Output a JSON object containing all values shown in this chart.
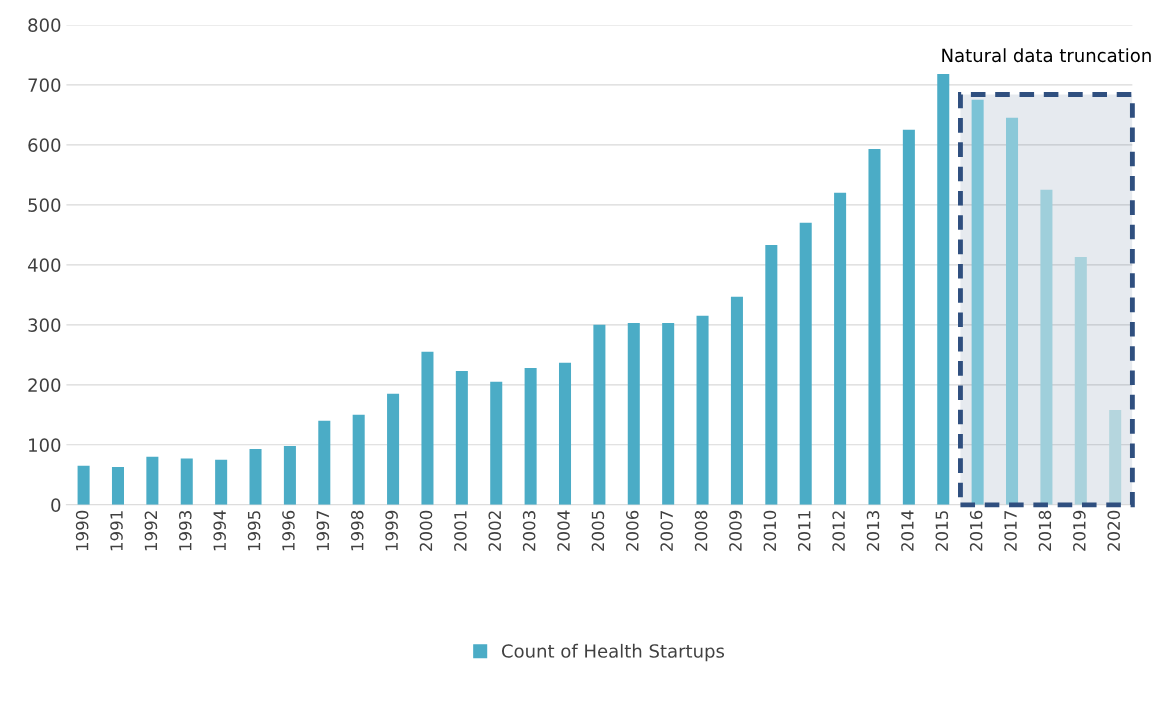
{
  "chart_data": {
    "type": "bar",
    "categories": [
      "1990",
      "1991",
      "1992",
      "1993",
      "1994",
      "1995",
      "1996",
      "1997",
      "1998",
      "1999",
      "2000",
      "2001",
      "2002",
      "2003",
      "2004",
      "2005",
      "2006",
      "2007",
      "2008",
      "2009",
      "2010",
      "2011",
      "2012",
      "2013",
      "2014",
      "2015",
      "2016",
      "2017",
      "2018",
      "2019",
      "2020"
    ],
    "series": [
      {
        "name": "Count of Health Startups",
        "color": "#4bacc6",
        "colors": [
          "#4bacc6",
          "#4bacc6",
          "#4bacc6",
          "#4bacc6",
          "#4bacc6",
          "#4bacc6",
          "#4bacc6",
          "#4bacc6",
          "#4bacc6",
          "#4bacc6",
          "#4bacc6",
          "#4bacc6",
          "#4bacc6",
          "#4bacc6",
          "#4bacc6",
          "#4bacc6",
          "#4bacc6",
          "#4bacc6",
          "#4bacc6",
          "#4bacc6",
          "#4bacc6",
          "#4bacc6",
          "#4bacc6",
          "#4bacc6",
          "#4bacc6",
          "#4bacc6",
          "#7cc3d6",
          "#8ac8d8",
          "#9fcfdb",
          "#a9d2dc",
          "#b5d6de"
        ],
        "values": [
          65,
          63,
          80,
          77,
          75,
          93,
          98,
          140,
          150,
          185,
          255,
          223,
          205,
          228,
          237,
          300,
          303,
          303,
          315,
          347,
          433,
          470,
          520,
          593,
          625,
          718,
          675,
          645,
          525,
          413,
          158
        ]
      }
    ],
    "ylim": [
      0,
      800
    ],
    "yticks": [
      0,
      100,
      200,
      300,
      400,
      500,
      600,
      700,
      800
    ],
    "grid": "y",
    "legend": "bottom",
    "bands": [
      {
        "axis": "x",
        "from": "2016",
        "to": "2020",
        "label": "Natural data truncation",
        "color": "#2f4f7f"
      }
    ]
  }
}
